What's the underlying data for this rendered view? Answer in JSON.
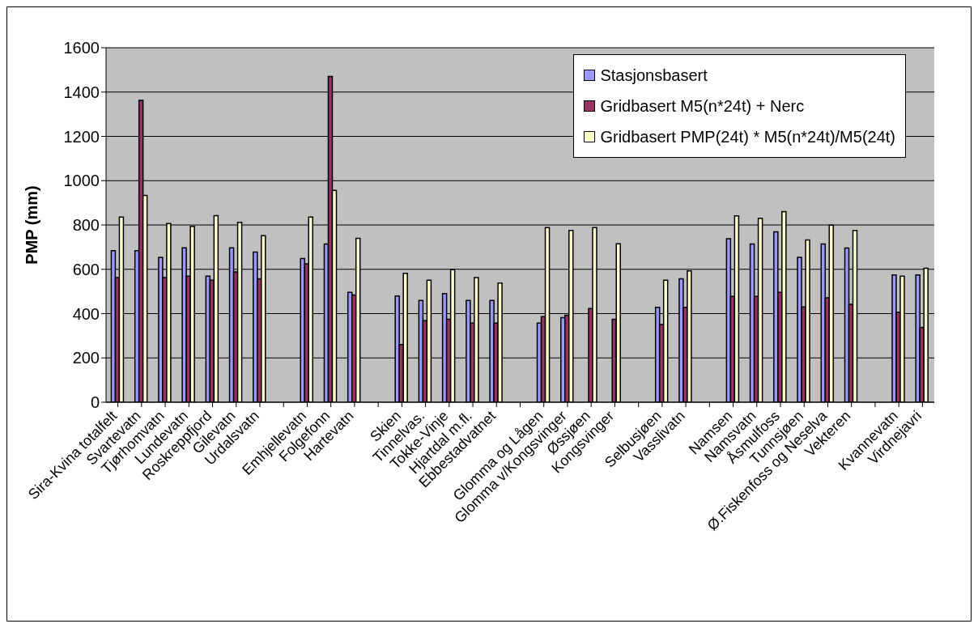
{
  "chart_data": {
    "type": "bar",
    "ylabel": "PMP (mm)",
    "categories": [
      "Sira-Kvina totalfelt",
      "Svartevatn",
      "Tjørhomvatn",
      "Lundevatn",
      "Roskreppfjord",
      "Gilevatn",
      "Urdalsvatn",
      null,
      "Emhjellevatn",
      "Folgefonn",
      "Hartevatn",
      null,
      "Skien",
      "Tinnelvas.",
      "Tokke-Vinje",
      "Hjartdal m.fl.",
      "Ebbestadvatnet",
      null,
      "Glomma og Lågen",
      "Glomma v/Kongsvinger",
      "Øssjøen",
      "Kongsvinger",
      null,
      "Selbusjøen",
      "Vasslivatn",
      null,
      "Namsen",
      "Namsvatn",
      "Åsmulfoss",
      "Tunnsjøen",
      "Ø.Fiskenfoss og Neselva",
      "Vekteren",
      null,
      "Kvannevatn",
      "Virdnejavri"
    ],
    "series": [
      {
        "name": "Stasjonsbasert",
        "color": "#9999ff",
        "values": [
          684,
          684,
          654,
          697,
          569,
          697,
          678,
          null,
          648,
          714,
          496,
          null,
          479,
          459,
          490,
          459,
          459,
          null,
          357,
          382,
          null,
          null,
          null,
          428,
          557,
          null,
          738,
          714,
          769,
          654,
          714,
          696,
          null,
          574,
          574
        ]
      },
      {
        "name": "Gridbasert M5(n*24t) + Nerc",
        "color": "#993366",
        "values": [
          563,
          1363,
          563,
          569,
          551,
          588,
          557,
          null,
          625,
          1470,
          484,
          null,
          260,
          368,
          374,
          357,
          357,
          null,
          386,
          393,
          423,
          374,
          null,
          351,
          428,
          null,
          478,
          478,
          496,
          430,
          471,
          442,
          null,
          406,
          338
        ]
      },
      {
        "name": "Gridbasert PMP(24t) * M5(n*24t)/M5(24t)",
        "color": "#ffffcc",
        "values": [
          836,
          933,
          806,
          794,
          842,
          812,
          752,
          null,
          836,
          956,
          740,
          null,
          582,
          551,
          598,
          563,
          538,
          null,
          788,
          775,
          788,
          715,
          null,
          551,
          593,
          null,
          841,
          830,
          860,
          732,
          799,
          775,
          null,
          569,
          605
        ]
      }
    ],
    "ylim": [
      0,
      1600
    ],
    "yticks": [
      0,
      200,
      400,
      600,
      800,
      1000,
      1200,
      1400,
      1600
    ],
    "grid": "y",
    "legend": "top right"
  }
}
